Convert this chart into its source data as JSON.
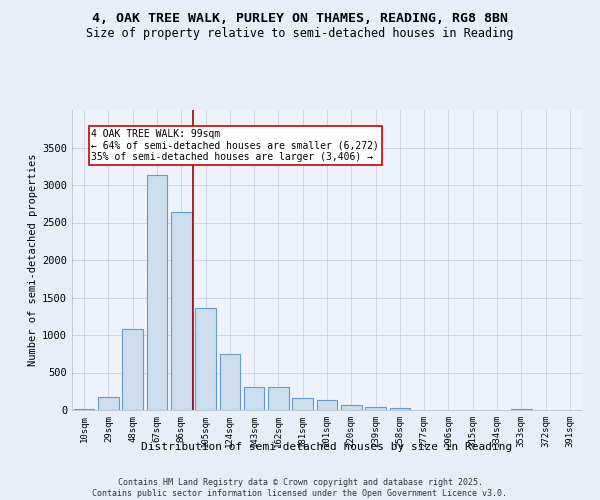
{
  "title1": "4, OAK TREE WALK, PURLEY ON THAMES, READING, RG8 8BN",
  "title2": "Size of property relative to semi-detached houses in Reading",
  "xlabel": "Distribution of semi-detached houses by size in Reading",
  "ylabel": "Number of semi-detached properties",
  "categories": [
    "10sqm",
    "29sqm",
    "48sqm",
    "67sqm",
    "86sqm",
    "105sqm",
    "124sqm",
    "143sqm",
    "162sqm",
    "181sqm",
    "201sqm",
    "220sqm",
    "239sqm",
    "258sqm",
    "277sqm",
    "296sqm",
    "315sqm",
    "334sqm",
    "353sqm",
    "372sqm",
    "391sqm"
  ],
  "bar_values": [
    20,
    170,
    1080,
    3140,
    2640,
    1360,
    750,
    310,
    310,
    160,
    140,
    70,
    40,
    30,
    0,
    0,
    0,
    0,
    20,
    0,
    0
  ],
  "bar_color": "#ccdded",
  "bar_edgecolor": "#6699cc",
  "bar_linewidth": 0.8,
  "vline_x": 4.5,
  "vline_color": "#aa0000",
  "annotation_text": "4 OAK TREE WALK: 99sqm\n← 64% of semi-detached houses are smaller (6,272)\n35% of semi-detached houses are larger (3,406) →",
  "ylim": [
    0,
    4000
  ],
  "yticks": [
    0,
    500,
    1000,
    1500,
    2000,
    2500,
    3000,
    3500
  ],
  "bg_color": "#e8eef8",
  "plot_bg": "#eef2fa",
  "footnote": "Contains HM Land Registry data © Crown copyright and database right 2025.\nContains public sector information licensed under the Open Government Licence v3.0.",
  "title_fontsize": 9.5,
  "subtitle_fontsize": 8.5,
  "tick_fontsize": 6.5,
  "ylabel_fontsize": 7.5,
  "xlabel_fontsize": 8,
  "footnote_fontsize": 6,
  "ann_fontsize": 7
}
